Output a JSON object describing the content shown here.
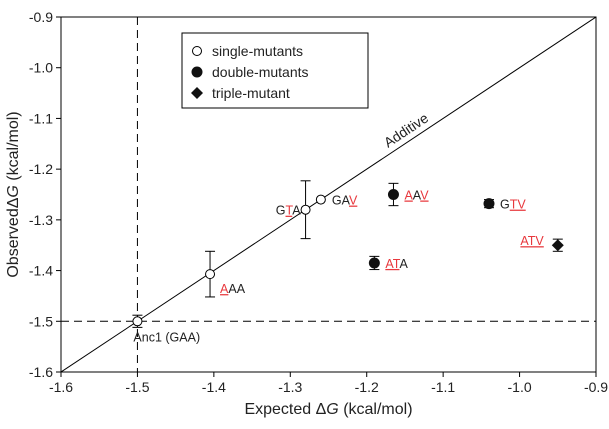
{
  "chart_data": {
    "type": "scatter",
    "xlabel": {
      "prefix": "Expected ",
      "delta": "Δ",
      "var": "G",
      "suffix": " (kcal/mol)"
    },
    "ylabel": {
      "prefix": "Observed",
      "delta": "Δ",
      "var": "G",
      "suffix": " (kcal/mol)"
    },
    "xlim": [
      -1.6,
      -0.9
    ],
    "ylim": [
      -1.6,
      -0.9
    ],
    "xticks": [
      "-1.6",
      "-1.5",
      "-1.4",
      "-1.3",
      "-1.2",
      "-1.1",
      "-1.0",
      "-0.9"
    ],
    "yticks": [
      "-0.9",
      "-1.0",
      "-1.1",
      "-1.2",
      "-1.3",
      "-1.4",
      "-1.5",
      "-1.6"
    ],
    "grid": false,
    "legend_position": "top-left",
    "series": [
      {
        "name": "single-mutants",
        "marker": "open-circle",
        "points": [
          {
            "x": -1.5,
            "y": -1.5,
            "err": 0.012,
            "label": [
              {
                "t": "Anc1 (GAA)",
                "red": false
              }
            ]
          },
          {
            "x": -1.405,
            "y": -1.407,
            "err": 0.045,
            "label": [
              {
                "t": "A",
                "red": true
              },
              {
                "t": "AA",
                "red": false
              }
            ]
          },
          {
            "x": -1.28,
            "y": -1.28,
            "err": 0.057,
            "label": [
              {
                "t": "G",
                "red": false
              },
              {
                "t": "T",
                "red": true
              },
              {
                "t": "A",
                "red": false
              }
            ]
          },
          {
            "x": -1.26,
            "y": -1.26,
            "err": 0.0,
            "label": [
              {
                "t": "GA",
                "red": false
              },
              {
                "t": "V",
                "red": true
              }
            ]
          }
        ]
      },
      {
        "name": "double-mutants",
        "marker": "filled-circle",
        "points": [
          {
            "x": -1.19,
            "y": -1.385,
            "err": 0.013,
            "label": [
              {
                "t": "AT",
                "red": true
              },
              {
                "t": "A",
                "red": false
              }
            ]
          },
          {
            "x": -1.165,
            "y": -1.25,
            "err": 0.022,
            "label": [
              {
                "t": "A",
                "red": true
              },
              {
                "t": "A",
                "red": false
              },
              {
                "t": "V",
                "red": true
              }
            ]
          },
          {
            "x": -1.04,
            "y": -1.268,
            "err": 0.008,
            "label": [
              {
                "t": "G",
                "red": false
              },
              {
                "t": "TV",
                "red": true
              }
            ]
          }
        ]
      },
      {
        "name": "triple-mutant",
        "marker": "filled-diamond",
        "points": [
          {
            "x": -0.95,
            "y": -1.35,
            "err": 0.012,
            "label": [
              {
                "t": "ATV",
                "red": true
              }
            ]
          }
        ]
      }
    ],
    "reference_lines": [
      {
        "type": "diagonal",
        "label": "Additive"
      },
      {
        "type": "vertical",
        "x": -1.5,
        "style": "dashed"
      },
      {
        "type": "horizontal",
        "y": -1.5,
        "style": "dashed"
      }
    ],
    "colors": {
      "axis": "#000000",
      "mutation_highlight": "#e8383d",
      "text": "#222222"
    }
  }
}
